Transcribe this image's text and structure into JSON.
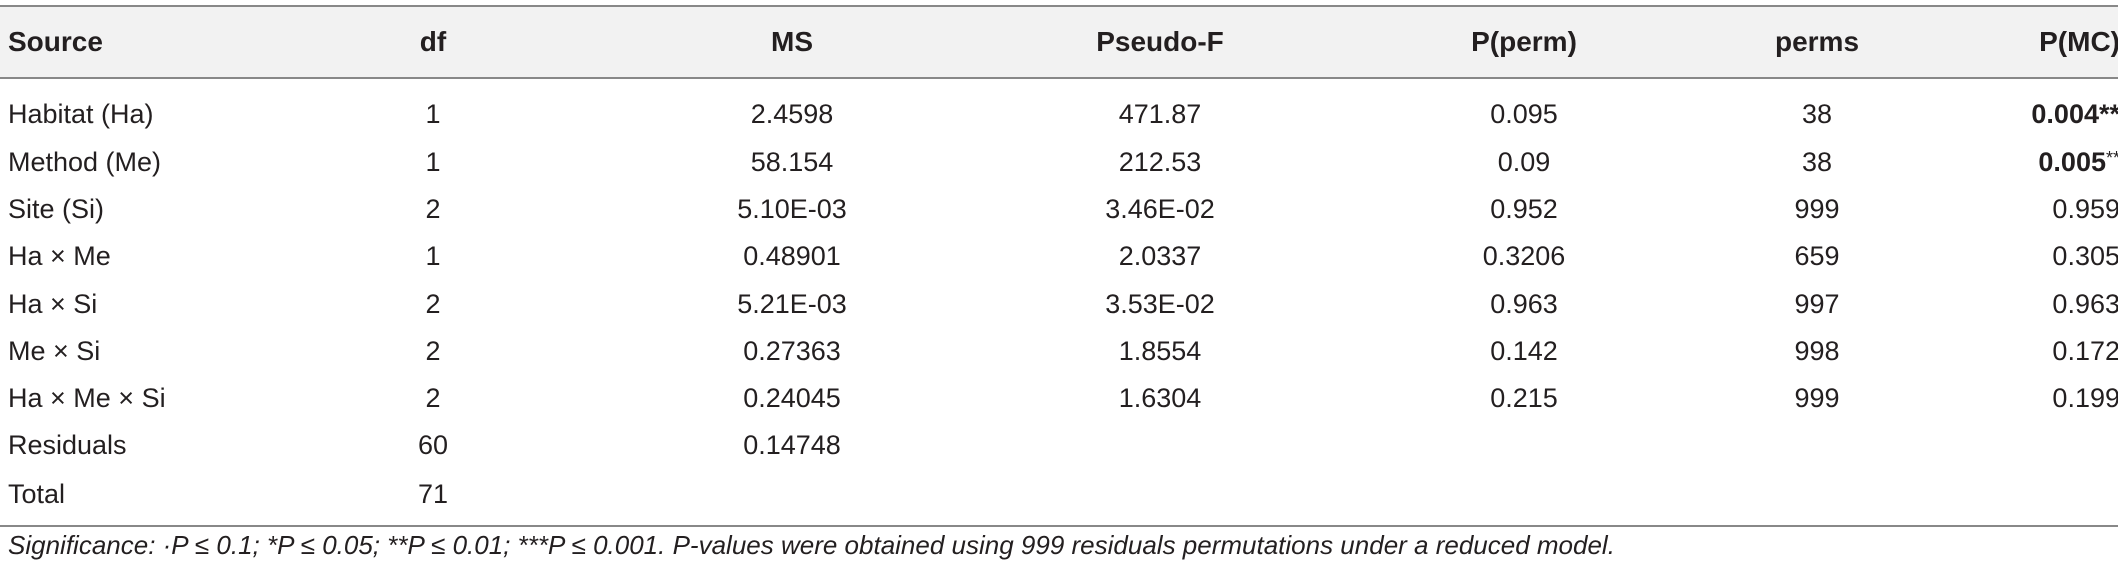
{
  "table": {
    "headers": [
      "Source",
      "df",
      "MS",
      "Pseudo-F",
      "P(perm)",
      "perms",
      "P(MC)"
    ],
    "rows": [
      {
        "source": "Habitat (Ha)",
        "df": "1",
        "ms": "2.4598",
        "pseudo_f": "471.87",
        "p_perm": "0.095",
        "perms": "38",
        "p_mc": "0.004",
        "p_mc_sig": "**"
      },
      {
        "source": "Method (Me)",
        "df": "1",
        "ms": "58.154",
        "pseudo_f": "212.53",
        "p_perm": "0.09",
        "perms": "38",
        "p_mc": "0.005",
        "p_mc_sig": "**"
      },
      {
        "source": "Site (Si)",
        "df": "2",
        "ms": "5.10E-03",
        "pseudo_f": "3.46E-02",
        "p_perm": "0.952",
        "perms": "999",
        "p_mc": "0.959",
        "p_mc_sig": ""
      },
      {
        "source": "Ha × Me",
        "df": "1",
        "ms": "0.48901",
        "pseudo_f": "2.0337",
        "p_perm": "0.3206",
        "perms": "659",
        "p_mc": "0.305",
        "p_mc_sig": ""
      },
      {
        "source": "Ha × Si",
        "df": "2",
        "ms": "5.21E-03",
        "pseudo_f": "3.53E-02",
        "p_perm": "0.963",
        "perms": "997",
        "p_mc": "0.963",
        "p_mc_sig": ""
      },
      {
        "source": "Me × Si",
        "df": "2",
        "ms": "0.27363",
        "pseudo_f": "1.8554",
        "p_perm": "0.142",
        "perms": "998",
        "p_mc": "0.172",
        "p_mc_sig": ""
      },
      {
        "source": "Ha × Me × Si",
        "df": "2",
        "ms": "0.24045",
        "pseudo_f": "1.6304",
        "p_perm": "0.215",
        "perms": "999",
        "p_mc": "0.199",
        "p_mc_sig": ""
      },
      {
        "source": "Residuals",
        "df": "60",
        "ms": "0.14748",
        "pseudo_f": "",
        "p_perm": "",
        "perms": "",
        "p_mc": "",
        "p_mc_sig": ""
      },
      {
        "source": "Total",
        "df": "71",
        "ms": "",
        "pseudo_f": "",
        "p_perm": "",
        "perms": "",
        "p_mc": "",
        "p_mc_sig": ""
      }
    ]
  },
  "footnote": "Significance: ·P ≤ 0.1; *P ≤ 0.05; **P ≤ 0.01; ***P ≤ 0.001. P-values were obtained using 999 residuals permutations under a reduced model.",
  "colors": {
    "header_background": "#f2f2f2",
    "rule": "#888888",
    "text": "#231f20"
  }
}
